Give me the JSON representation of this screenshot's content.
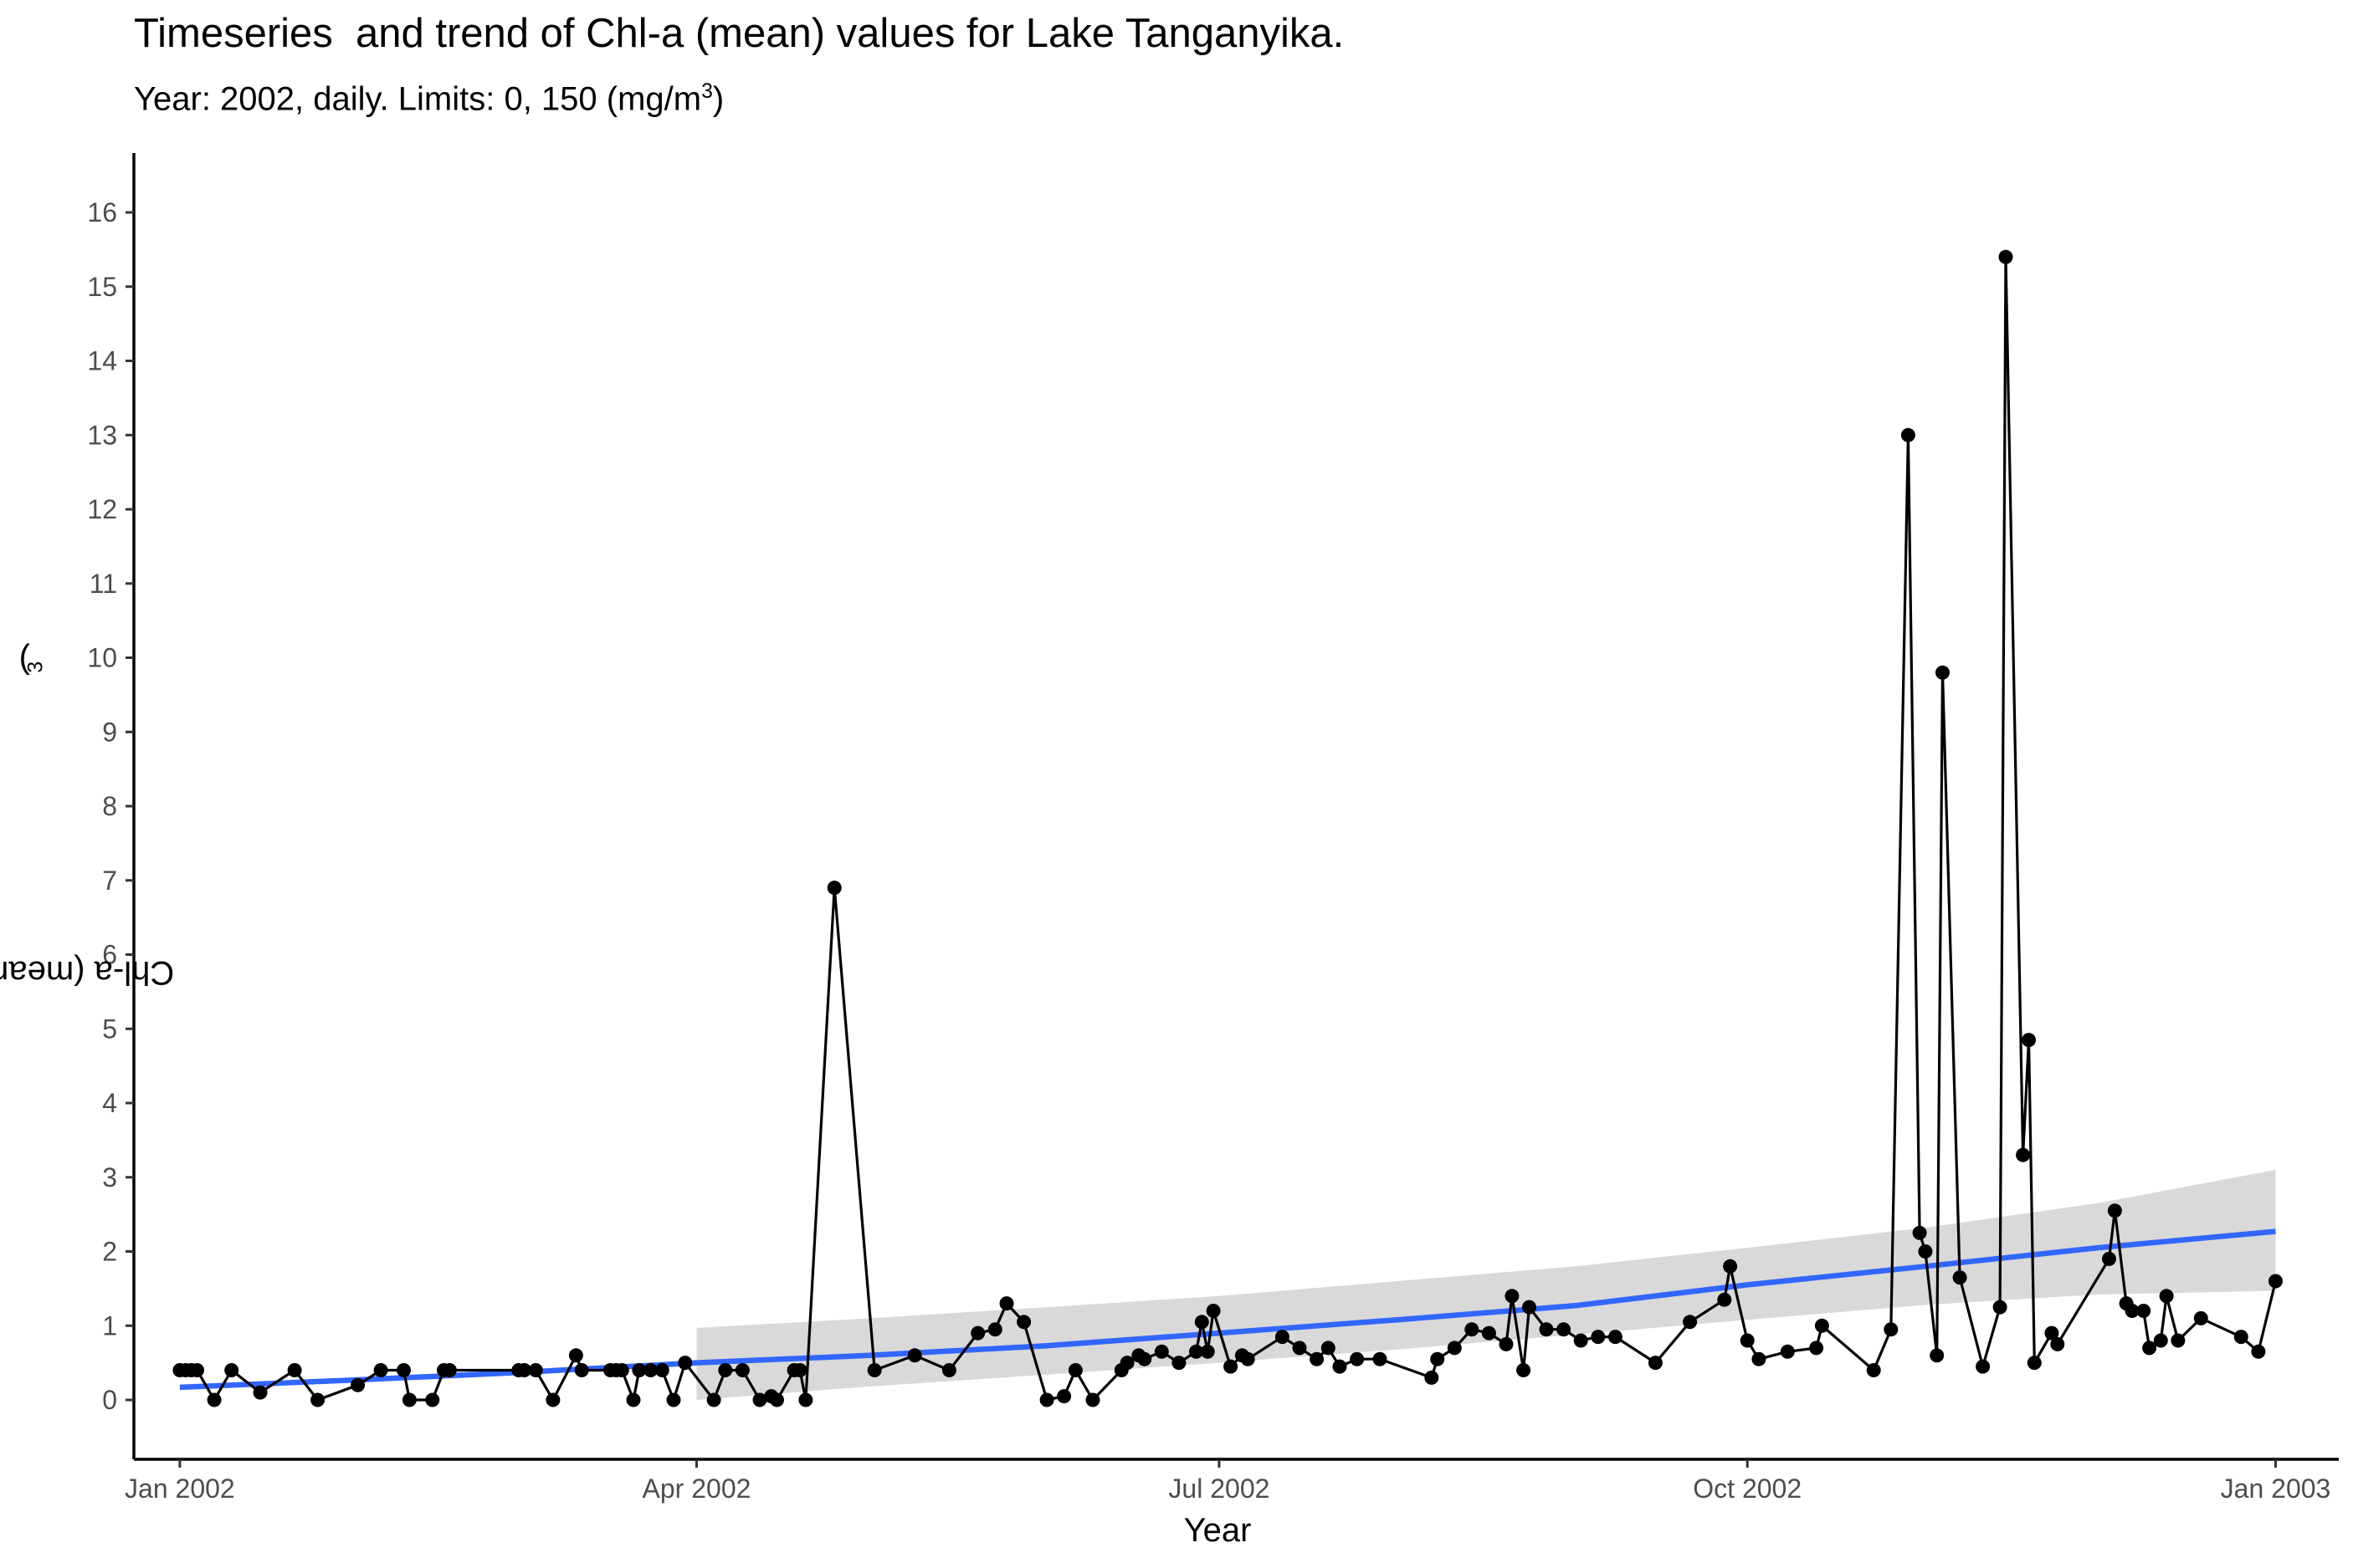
{
  "chart_data": {
    "type": "line",
    "title": "Timeseries  and trend of Chl-a (mean) values for Lake Tanganyika.",
    "subtitle": {
      "text": "Year: 2002, daily. Limits: 0, 150 (mg/m",
      "sup": "3",
      "close": ")"
    },
    "xlabel": "Year",
    "ylabel": {
      "text": "Chl-a (mean) (mg/m",
      "sup": "3",
      "close": ")"
    },
    "x_type": "date",
    "xlim": [
      "2001-12-24",
      "2003-01-12"
    ],
    "ylim": [
      -0.8,
      16.8
    ],
    "x_ticks": [
      {
        "date": "2002-01-01",
        "label": "Jan 2002"
      },
      {
        "date": "2002-04-01",
        "label": "Apr 2002"
      },
      {
        "date": "2002-07-01",
        "label": "Jul 2002"
      },
      {
        "date": "2002-10-01",
        "label": "Oct 2002"
      },
      {
        "date": "2003-01-01",
        "label": "Jan 2003"
      }
    ],
    "y_ticks": [
      0,
      1,
      2,
      3,
      4,
      5,
      6,
      7,
      8,
      9,
      10,
      11,
      12,
      13,
      14,
      15,
      16
    ],
    "grid": false,
    "series": [
      {
        "style": "line+points",
        "color": "#000000",
        "x": [
          "2002-01-01",
          "2002-01-02",
          "2002-01-03",
          "2002-01-04",
          "2002-01-07",
          "2002-01-10",
          "2002-01-15",
          "2002-01-21",
          "2002-01-25",
          "2002-02-01",
          "2002-02-05",
          "2002-02-09",
          "2002-02-10",
          "2002-02-14",
          "2002-02-16",
          "2002-02-17",
          "2002-03-01",
          "2002-03-02",
          "2002-03-04",
          "2002-03-07",
          "2002-03-11",
          "2002-03-12",
          "2002-03-17",
          "2002-03-18",
          "2002-03-19",
          "2002-03-21",
          "2002-03-22",
          "2002-03-24",
          "2002-03-26",
          "2002-03-28",
          "2002-03-30",
          "2002-04-04",
          "2002-04-06",
          "2002-04-09",
          "2002-04-12",
          "2002-04-14",
          "2002-04-15",
          "2002-04-18",
          "2002-04-19",
          "2002-04-20",
          "2002-04-25",
          "2002-05-02",
          "2002-05-09",
          "2002-05-15",
          "2002-05-20",
          "2002-05-23",
          "2002-05-25",
          "2002-05-28",
          "2002-06-01",
          "2002-06-04",
          "2002-06-06",
          "2002-06-09",
          "2002-06-14",
          "2002-06-15",
          "2002-06-17",
          "2002-06-18",
          "2002-06-21",
          "2002-06-24",
          "2002-06-27",
          "2002-06-28",
          "2002-06-29",
          "2002-06-30",
          "2002-07-03",
          "2002-07-05",
          "2002-07-06",
          "2002-07-12",
          "2002-07-15",
          "2002-07-18",
          "2002-07-20",
          "2002-07-22",
          "2002-07-25",
          "2002-07-29",
          "2002-08-07",
          "2002-08-08",
          "2002-08-11",
          "2002-08-14",
          "2002-08-17",
          "2002-08-20",
          "2002-08-21",
          "2002-08-23",
          "2002-08-24",
          "2002-08-27",
          "2002-08-30",
          "2002-09-02",
          "2002-09-05",
          "2002-09-08",
          "2002-09-15",
          "2002-09-21",
          "2002-09-27",
          "2002-09-28",
          "2002-10-01",
          "2002-10-03",
          "2002-10-08",
          "2002-10-13",
          "2002-10-14",
          "2002-10-23",
          "2002-10-26",
          "2002-10-29",
          "2002-10-31",
          "2002-11-01",
          "2002-11-03",
          "2002-11-04",
          "2002-11-07",
          "2002-11-11",
          "2002-11-14",
          "2002-11-15",
          "2002-11-18",
          "2002-11-19",
          "2002-11-20",
          "2002-11-23",
          "2002-11-24",
          "2002-12-03",
          "2002-12-04",
          "2002-12-06",
          "2002-12-07",
          "2002-12-09",
          "2002-12-10",
          "2002-12-12",
          "2002-12-13",
          "2002-12-15",
          "2002-12-19",
          "2002-12-26",
          "2002-12-29",
          "2003-01-01"
        ],
        "y": [
          0.4,
          0.4,
          0.4,
          0.4,
          0.0,
          0.4,
          0.1,
          0.4,
          0.0,
          0.2,
          0.4,
          0.4,
          0.0,
          0.0,
          0.4,
          0.4,
          0.4,
          0.4,
          0.4,
          0.0,
          0.6,
          0.4,
          0.4,
          0.4,
          0.4,
          0.0,
          0.4,
          0.4,
          0.4,
          0.0,
          0.5,
          0.0,
          0.4,
          0.4,
          0.0,
          0.05,
          0.0,
          0.4,
          0.4,
          0.0,
          6.9,
          0.4,
          0.6,
          0.4,
          0.9,
          0.95,
          1.3,
          1.05,
          0.0,
          0.05,
          0.4,
          0.0,
          0.4,
          0.5,
          0.6,
          0.55,
          0.65,
          0.5,
          0.65,
          1.05,
          0.65,
          1.2,
          0.45,
          0.6,
          0.55,
          0.85,
          0.7,
          0.55,
          0.7,
          0.45,
          0.55,
          0.55,
          0.3,
          0.55,
          0.7,
          0.95,
          0.9,
          0.75,
          1.4,
          0.4,
          1.25,
          0.95,
          0.95,
          0.8,
          0.85,
          0.85,
          0.5,
          1.05,
          1.35,
          1.8,
          0.8,
          0.55,
          0.65,
          0.7,
          1.0,
          0.4,
          0.95,
          13.0,
          2.25,
          2.0,
          0.6,
          9.8,
          1.65,
          0.45,
          1.25,
          15.4,
          3.3,
          4.85,
          0.5,
          0.9,
          0.75,
          1.9,
          2.55,
          1.3,
          1.2,
          1.2,
          0.7,
          0.8,
          1.4,
          0.8,
          1.1,
          0.85,
          0.65,
          1.6
        ]
      },
      {
        "type": "trend",
        "color": "#3366ff",
        "band_color": "#d9d9d9",
        "x": [
          "2002-01-01",
          "2002-02-01",
          "2002-03-01",
          "2002-04-01",
          "2002-05-01",
          "2002-06-01",
          "2002-07-01",
          "2002-08-01",
          "2002-09-01",
          "2002-10-01",
          "2002-11-01",
          "2002-12-01",
          "2003-01-01"
        ],
        "y": [
          0.17,
          0.27,
          0.37,
          0.5,
          0.6,
          0.73,
          0.9,
          1.08,
          1.27,
          1.55,
          1.8,
          2.05,
          2.27
        ],
        "lower": [
          null,
          null,
          null,
          0.0,
          0.18,
          0.34,
          0.5,
          0.68,
          0.88,
          1.08,
          1.28,
          1.42,
          1.47
        ],
        "upper": [
          null,
          null,
          null,
          0.97,
          1.1,
          1.25,
          1.4,
          1.6,
          1.8,
          2.05,
          2.32,
          2.65,
          3.1
        ]
      }
    ]
  }
}
